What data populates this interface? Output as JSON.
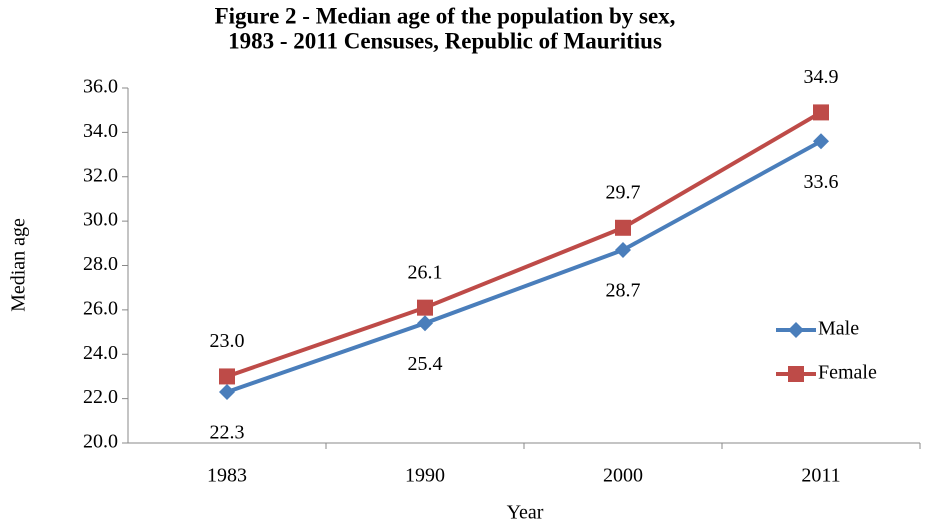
{
  "chart_data": {
    "type": "line",
    "title": [
      "Figure 2 - Median age of the population by sex,",
      "1983 - 2011 Censuses,  Republic of Mauritius"
    ],
    "xlabel": "Year",
    "ylabel": "Median age",
    "categories": [
      "1983",
      "1990",
      "2000",
      "2011"
    ],
    "series": [
      {
        "name": "Male",
        "color": "#4a7ebb",
        "marker": "diamond",
        "values": [
          22.3,
          25.4,
          28.7,
          33.6
        ],
        "value_labels": [
          "22.3",
          "25.4",
          "28.7",
          "33.6"
        ]
      },
      {
        "name": "Female",
        "color": "#be4b48",
        "marker": "square",
        "values": [
          23.0,
          26.1,
          29.7,
          34.9
        ],
        "value_labels": [
          "23.0",
          "26.1",
          "29.7",
          "34.9"
        ]
      }
    ],
    "ylim": [
      20,
      36
    ],
    "yticks": [
      {
        "value": 20,
        "label": "20.0"
      },
      {
        "value": 22,
        "label": "22.0"
      },
      {
        "value": 24,
        "label": "24.0"
      },
      {
        "value": 26,
        "label": "26.0"
      },
      {
        "value": 28,
        "label": "28.0"
      },
      {
        "value": 30,
        "label": "30.0"
      },
      {
        "value": 32,
        "label": "32.0"
      },
      {
        "value": 34,
        "label": "34.0"
      },
      {
        "value": 36,
        "label": "36.0"
      }
    ],
    "grid": false,
    "legend": "right"
  }
}
